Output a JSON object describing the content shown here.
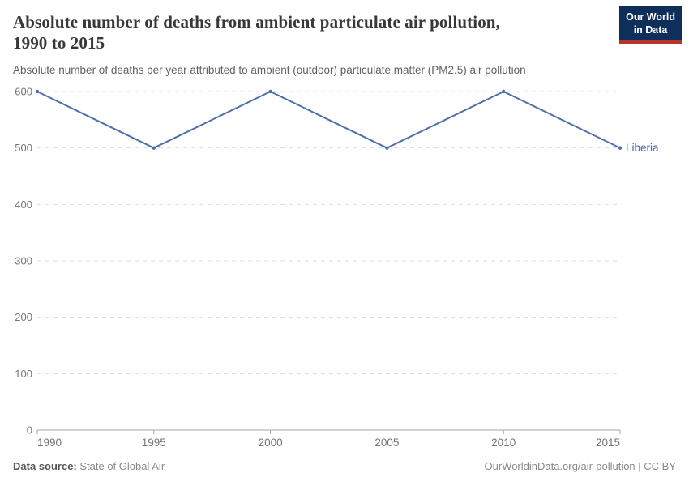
{
  "header": {
    "title_line1": "Absolute number of deaths from ambient particulate air pollution,",
    "title_line2": "1990 to 2015",
    "subtitle": "Absolute number of deaths per year attributed to ambient (outdoor) particulate matter (PM2.5) air pollution",
    "logo": {
      "line1": "Our World",
      "line2": "in Data"
    }
  },
  "chart_data": {
    "type": "line",
    "title": "Absolute number of deaths from ambient particulate air pollution, 1990 to 2015",
    "x": [
      1990,
      1995,
      2000,
      2005,
      2010,
      2015
    ],
    "series": [
      {
        "name": "Liberia",
        "values": [
          600,
          500,
          600,
          500,
          600,
          500
        ],
        "color": "#4e6fac"
      }
    ],
    "xlabel": "",
    "ylabel": "",
    "ylim": [
      0,
      600
    ],
    "yticks": [
      0,
      100,
      200,
      300,
      400,
      500,
      600
    ],
    "xticks": [
      1990,
      1995,
      2000,
      2005,
      2010,
      2015
    ],
    "grid": "horizontal-dashed",
    "legend": "end-of-line-label"
  },
  "footer": {
    "data_source_label": "Data source:",
    "data_source_value": " State of Global Air",
    "credit": "OurWorldinData.org/air-pollution | CC BY"
  },
  "colors": {
    "line": "#4e6fac",
    "series_label": "#4a67a0",
    "grid": "#dcdcdc",
    "axis": "#a5a5a5",
    "tick_text": "#757575",
    "logo_bg": "#0e2f5a",
    "logo_red": "#b5342c",
    "title_text": "#383838",
    "subtitle_text": "#616161"
  }
}
